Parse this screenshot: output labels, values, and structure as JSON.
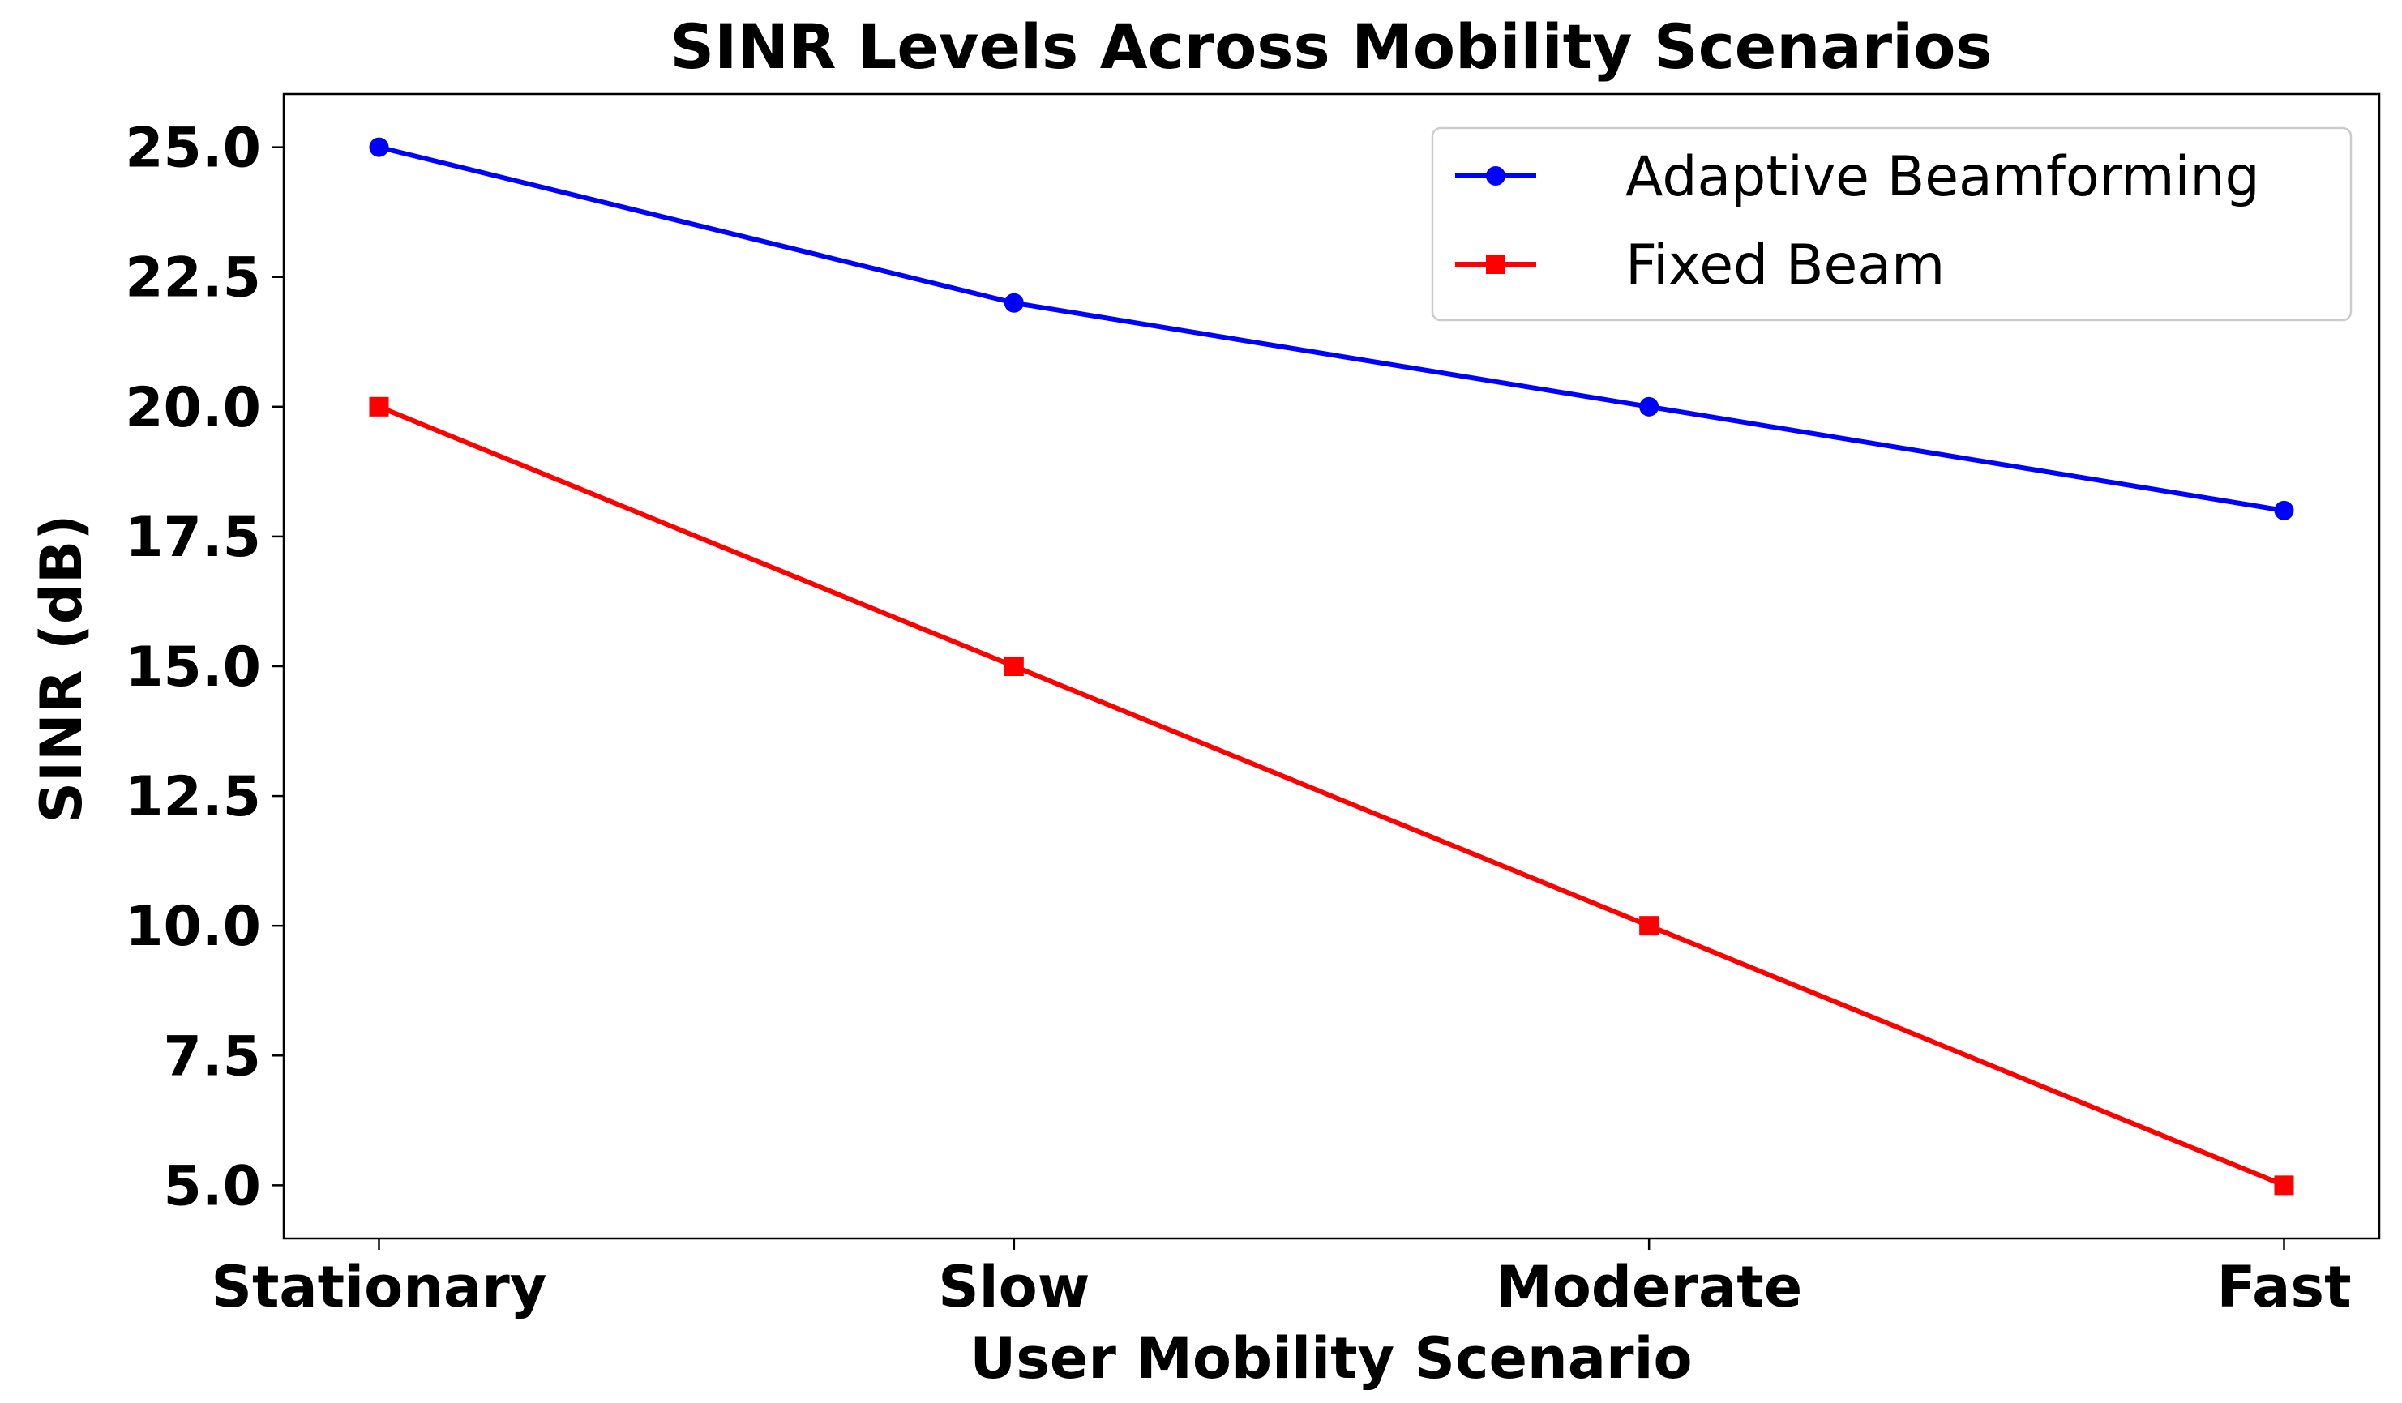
{
  "chart_data": {
    "type": "line",
    "title": "SINR Levels Across Mobility Scenarios",
    "xlabel": "User Mobility Scenario",
    "ylabel": "SINR (dB)",
    "categories": [
      "Stationary",
      "Slow",
      "Moderate",
      "Fast"
    ],
    "ylim": [
      3.975,
      26.025
    ],
    "yticks": [
      5.0,
      7.5,
      10.0,
      12.5,
      15.0,
      17.5,
      20.0,
      22.5,
      25.0
    ],
    "ytick_labels": [
      "5.0",
      "7.5",
      "10.0",
      "12.5",
      "15.0",
      "17.5",
      "20.0",
      "22.5",
      "25.0"
    ],
    "grid": false,
    "legend_position": "top-right",
    "series": [
      {
        "name": "Adaptive Beamforming",
        "values": [
          25,
          22,
          20,
          18
        ],
        "color": "#0000ff",
        "marker": "circle"
      },
      {
        "name": "Fixed Beam",
        "values": [
          20,
          15,
          10,
          5
        ],
        "color": "#ff0000",
        "marker": "square"
      }
    ]
  }
}
